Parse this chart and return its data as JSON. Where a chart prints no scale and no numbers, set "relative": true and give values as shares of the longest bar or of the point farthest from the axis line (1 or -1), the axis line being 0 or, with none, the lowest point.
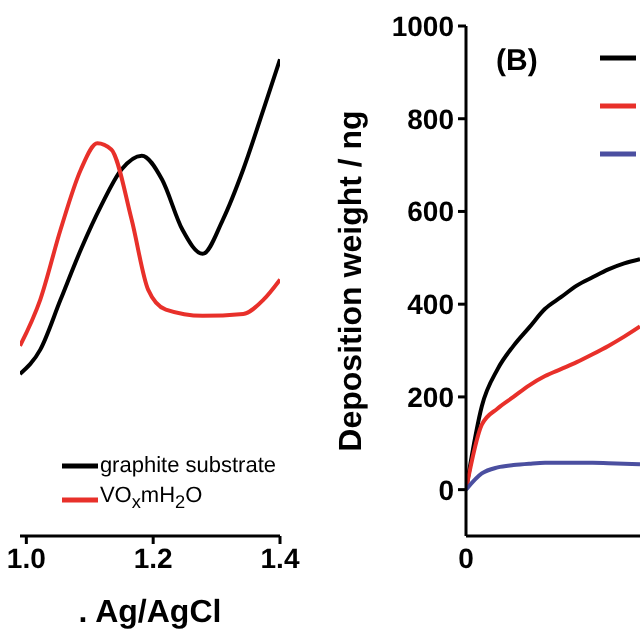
{
  "chart_data": [
    {
      "type": "line",
      "xlabel": ". Ag/AgCl",
      "relative": true,
      "xlim": [
        0.99,
        1.4
      ],
      "xticks": [
        {
          "value": 1.0,
          "label": "1.0"
        },
        1.2,
        1.4
      ],
      "legend": "bottom right",
      "marker": "none",
      "line_style": "solid",
      "series": [
        {
          "name": "graphite substrate",
          "color": "#000000",
          "x": [
            0.99,
            1.022,
            1.054,
            1.086,
            1.118,
            1.15,
            1.182,
            1.214,
            1.246,
            1.278,
            1.31,
            1.342,
            1.374,
            1.4
          ],
          "values": [
            0.34,
            0.391,
            0.496,
            0.601,
            0.693,
            0.769,
            0.798,
            0.748,
            0.643,
            0.592,
            0.664,
            0.769,
            0.895,
            1.0
          ]
        },
        {
          "name": "VO$_{x}$mH$_{2}$O",
          "color": "#e8302a",
          "x": [
            0.99,
            1.022,
            1.054,
            1.086,
            1.112,
            1.134,
            1.166,
            1.192,
            1.22,
            1.278,
            1.342,
            1.374,
            1.4
          ],
          "values": [
            0.399,
            0.496,
            0.643,
            0.769,
            0.824,
            0.811,
            0.664,
            0.517,
            0.475,
            0.462,
            0.466,
            0.496,
            0.538
          ]
        }
      ]
    },
    {
      "type": "line",
      "ylabel": "Deposition weight / ng",
      "categories": [
        null,
        null,
        null,
        null,
        null,
        null,
        null,
        null,
        null,
        null,
        null,
        null
      ],
      "ylim": [
        -100,
        1000
      ],
      "yticks": [
        0,
        200,
        400,
        600,
        800,
        1000
      ],
      "legend": "top right",
      "marker": "none",
      "line_style": "solid",
      "annotations": [
        "(B)",
        "0"
      ],
      "series": [
        {
          "color": "#000000",
          "values": [
            0,
            180,
            260,
            310,
            350,
            390,
            415,
            440,
            458,
            475,
            488,
            497
          ]
        },
        {
          "color": "#e8302a",
          "values": [
            0,
            140,
            175,
            200,
            225,
            245,
            260,
            275,
            292,
            310,
            330,
            352
          ]
        },
        {
          "color": "#4b4fa0",
          "values": [
            0,
            35,
            48,
            53,
            56,
            58,
            58,
            58,
            58,
            57,
            56,
            55
          ]
        }
      ]
    }
  ]
}
